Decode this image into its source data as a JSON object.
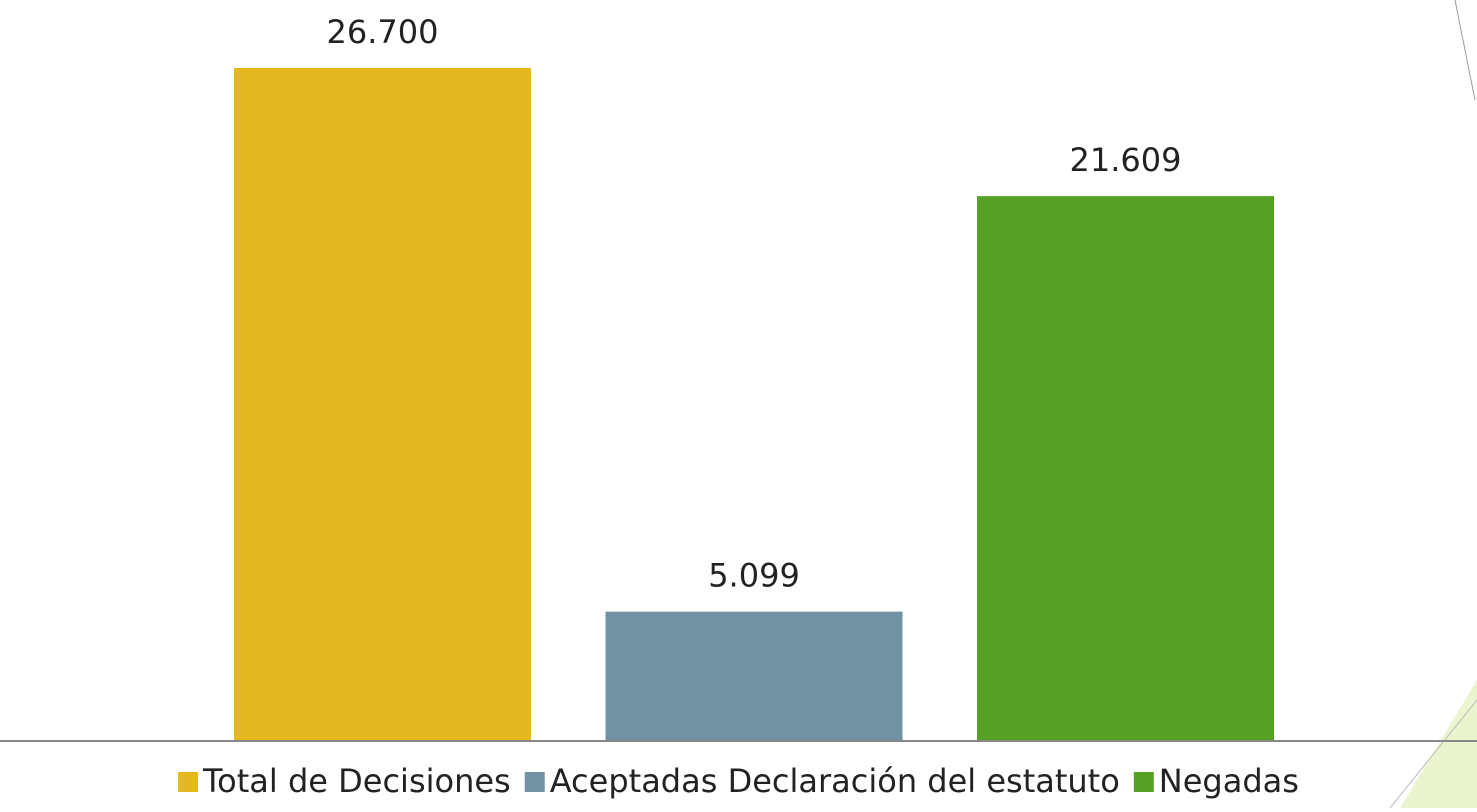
{
  "chart_data": {
    "type": "bar",
    "series": [
      {
        "name": "Total de Decisiones",
        "color": "#e4b91f",
        "values": [
          26700
        ],
        "value_labels": [
          "26.700"
        ]
      },
      {
        "name": "Aceptadas Declaración del estatuto",
        "color": "#7092a2",
        "values": [
          5099
        ],
        "value_labels": [
          "5.099"
        ]
      },
      {
        "name": "Negadas",
        "color": "#55a123",
        "values": [
          21609
        ],
        "value_labels": [
          "21.609"
        ]
      }
    ]
  }
}
